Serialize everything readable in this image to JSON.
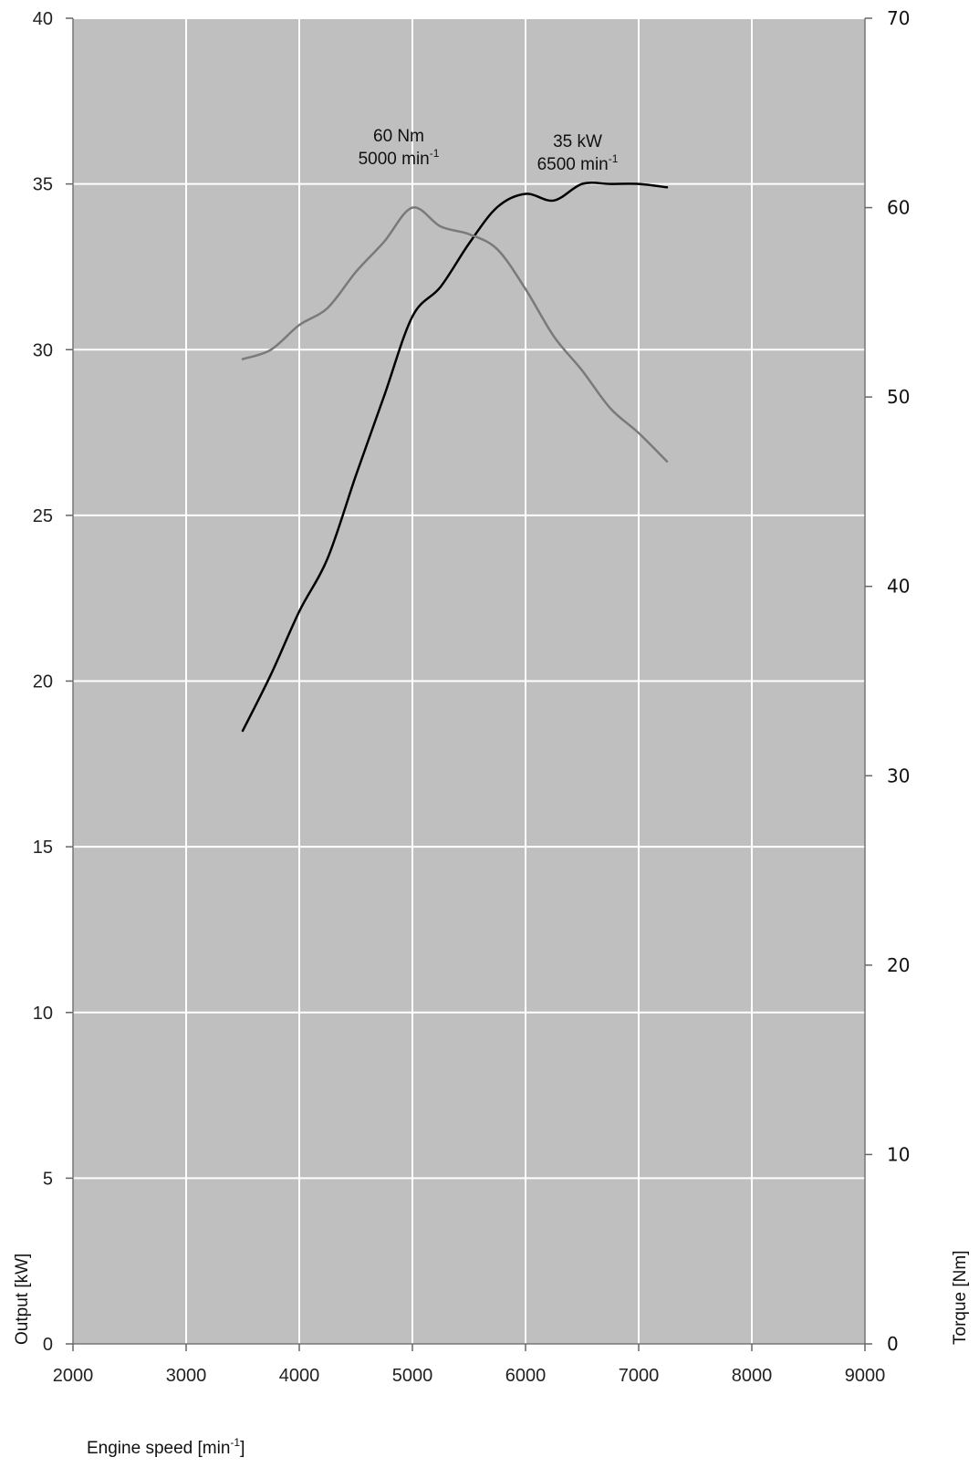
{
  "chart_data": {
    "type": "line",
    "title": "",
    "xlabel": "Engine speed [min",
    "xlabel_sup": "-1",
    "xlabel_close": "]",
    "ylabel_left": "Output [kW]",
    "ylabel_right": "Torque [Nm]",
    "xlim": [
      2000,
      9000
    ],
    "ylim_left": [
      0,
      40
    ],
    "ylim_right": [
      0,
      70
    ],
    "x_ticks": [
      2000,
      3000,
      4000,
      5000,
      6000,
      7000,
      8000,
      9000
    ],
    "y_ticks_left": [
      0,
      5,
      10,
      15,
      20,
      25,
      30,
      35,
      40
    ],
    "y_ticks_right": [
      0,
      10,
      20,
      30,
      40,
      50,
      60,
      70
    ],
    "grid": true,
    "background": "#bfbfbf",
    "series": [
      {
        "axis": "left",
        "color": "#000000",
        "x": [
          3500,
          3750,
          4000,
          4250,
          4500,
          4750,
          5000,
          5250,
          5500,
          5750,
          6000,
          6250,
          6500,
          6750,
          7000,
          7250
        ],
        "values": [
          18.5,
          20.2,
          22.1,
          23.7,
          26.2,
          28.6,
          31.0,
          31.9,
          33.2,
          34.3,
          34.7,
          34.5,
          35.0,
          35.0,
          35.0,
          34.9
        ]
      },
      {
        "axis": "right",
        "color": "#7a7a7a",
        "x": [
          3500,
          3750,
          4000,
          4250,
          4500,
          4750,
          5000,
          5250,
          5500,
          5750,
          6000,
          6250,
          6500,
          6750,
          7000,
          7250
        ],
        "values": [
          52.0,
          52.5,
          53.8,
          54.7,
          56.6,
          58.2,
          60.0,
          59.0,
          58.6,
          57.8,
          55.7,
          53.2,
          51.4,
          49.4,
          48.1,
          46.6
        ]
      }
    ],
    "annotations": [
      {
        "line1": "60 Nm",
        "line2": "5000 min",
        "sup": "-1"
      },
      {
        "line1": "35 kW",
        "line2": "6500 min",
        "sup": "-1"
      }
    ]
  }
}
